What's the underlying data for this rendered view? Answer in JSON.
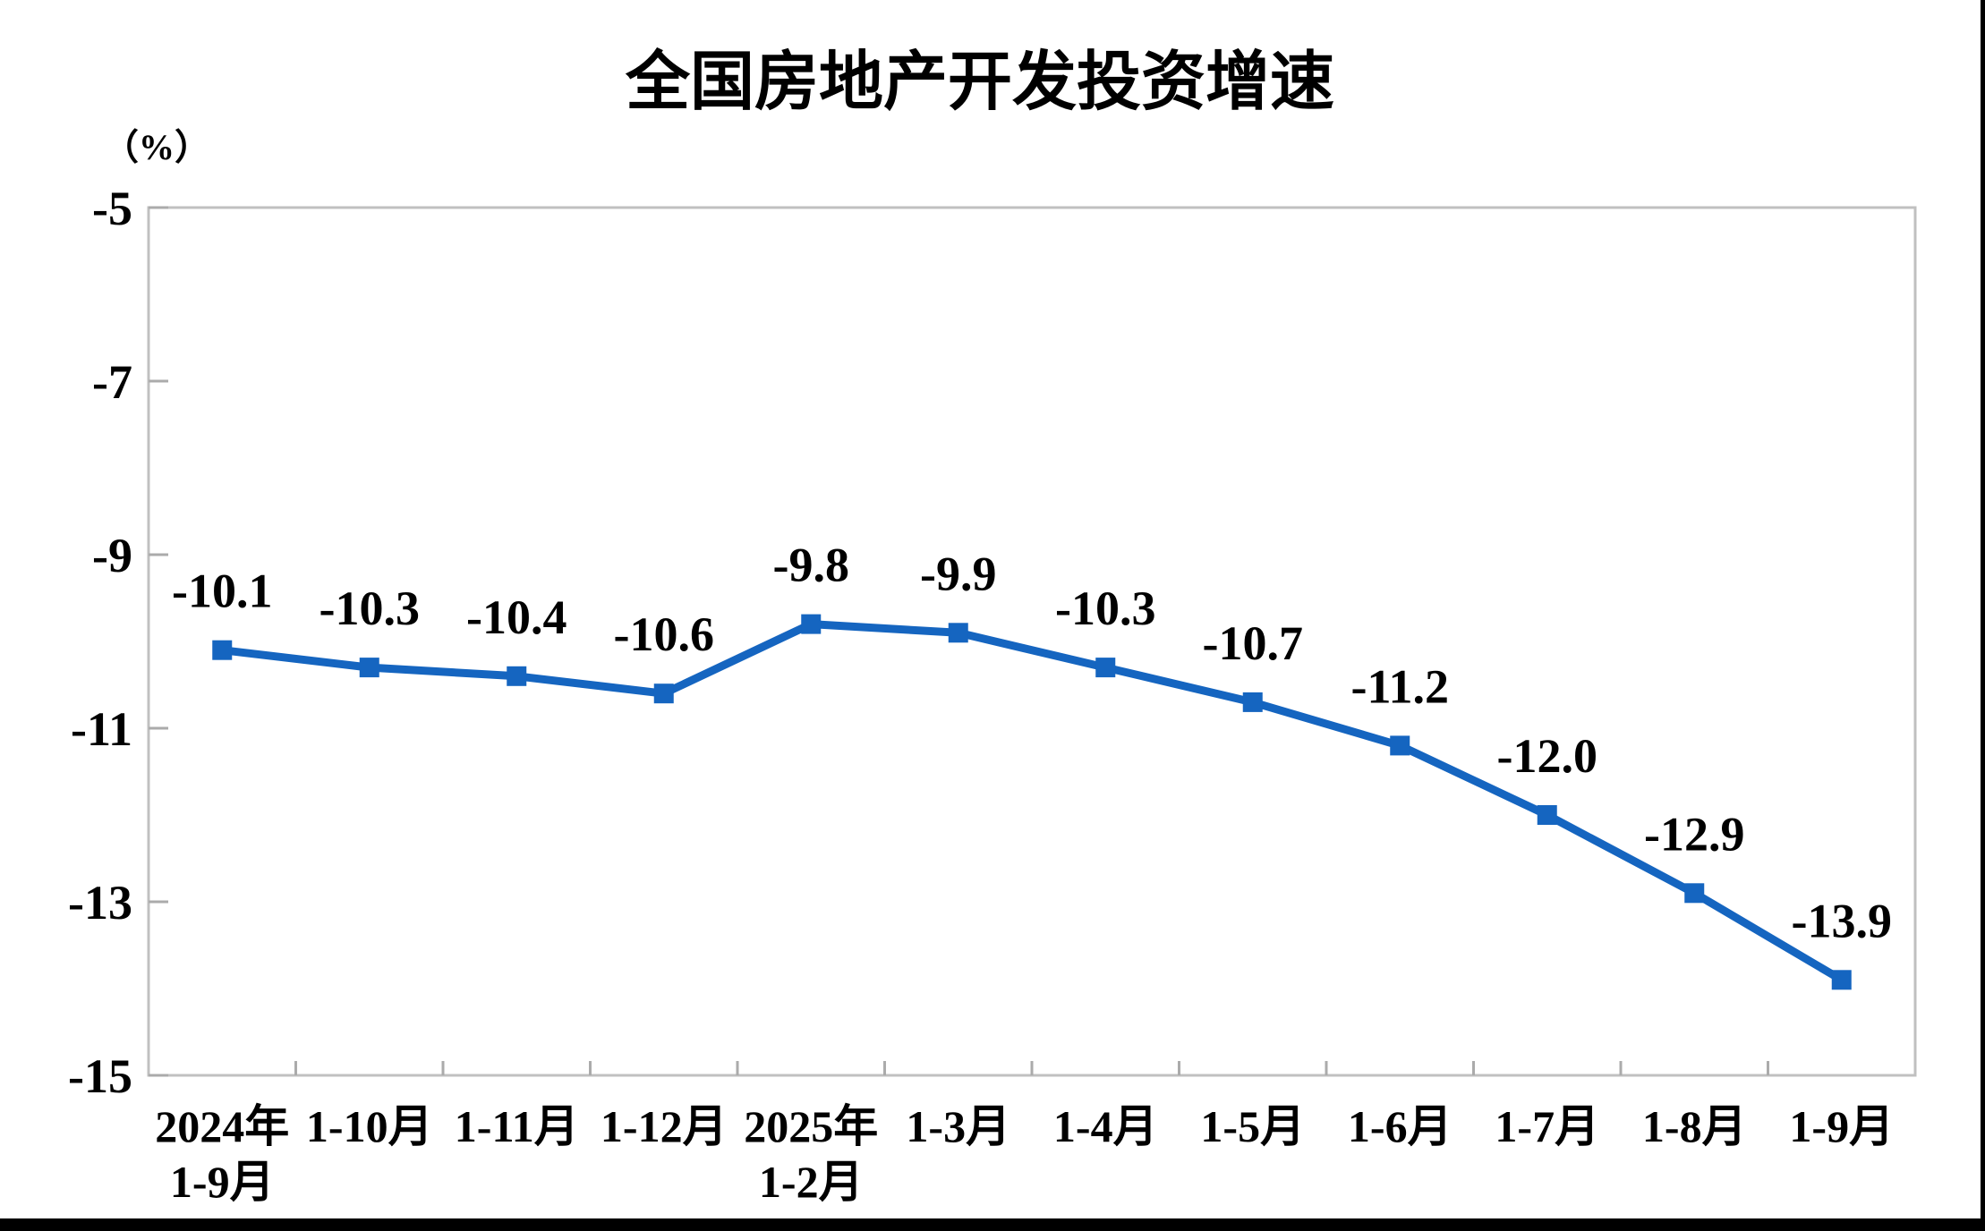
{
  "page": {
    "background": "#ffffff",
    "edge_color": "#000000"
  },
  "chart_data": {
    "type": "line",
    "title": "全国房地产开发投资增速",
    "ylabel": "（%）",
    "xlabel": "",
    "categories": [
      [
        "2024年",
        "1-9月"
      ],
      [
        "1-10月"
      ],
      [
        "1-11月"
      ],
      [
        "1-12月"
      ],
      [
        "2025年",
        "1-2月"
      ],
      [
        "1-3月"
      ],
      [
        "1-4月"
      ],
      [
        "1-5月"
      ],
      [
        "1-6月"
      ],
      [
        "1-7月"
      ],
      [
        "1-8月"
      ],
      [
        "1-9月"
      ]
    ],
    "values": [
      -10.1,
      -10.3,
      -10.4,
      -10.6,
      -9.8,
      -9.9,
      -10.3,
      -10.7,
      -11.2,
      -12.0,
      -12.9,
      -13.9
    ],
    "data_labels": [
      "-10.1",
      "-10.3",
      "-10.4",
      "-10.6",
      "-9.8",
      "-9.9",
      "-10.3",
      "-10.7",
      "-11.2",
      "-12.0",
      "-12.9",
      "-13.9"
    ],
    "ylim": [
      -15,
      -5
    ],
    "y_ticks": [
      -5,
      -7,
      -9,
      -11,
      -13,
      -15
    ],
    "y_tick_labels": [
      "-5",
      "-7",
      "-9",
      "-11",
      "-13",
      "-15"
    ],
    "grid": false,
    "legend": "none",
    "marker": "square",
    "line_color": "#1565c0",
    "axis_color": "#c0c0c0",
    "tick_color": "#ababab",
    "text_color": "#000000"
  }
}
